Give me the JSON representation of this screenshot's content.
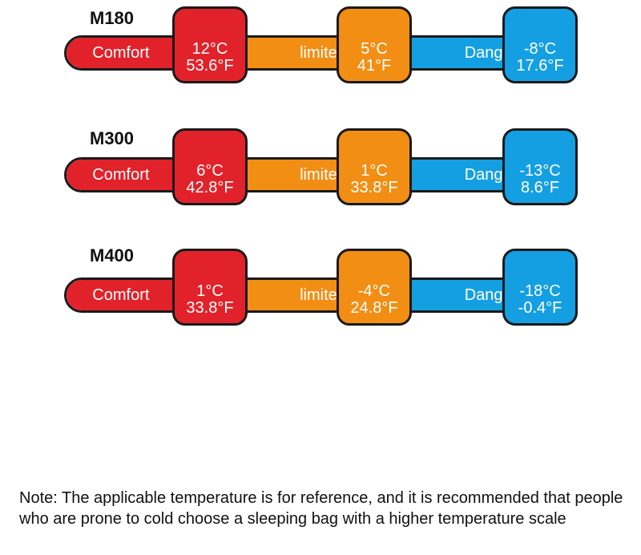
{
  "rows": [
    {
      "model": "M180",
      "comfort_label": "Comfort",
      "limited_label": "limited",
      "danger_label": "Danger",
      "comfort_c": "12°C",
      "comfort_f": "53.6°F",
      "limited_c": "5°C",
      "limited_f": "41°F",
      "danger_c": "-8°C",
      "danger_f": "17.6°F"
    },
    {
      "model": "M300",
      "comfort_label": "Comfort",
      "limited_label": "limited",
      "danger_label": "Danger",
      "comfort_c": "6°C",
      "comfort_f": "42.8°F",
      "limited_c": "1°C",
      "limited_f": "33.8°F",
      "danger_c": "-13°C",
      "danger_f": "8.6°F"
    },
    {
      "model": "M400",
      "comfort_label": "Comfort",
      "limited_label": "limited",
      "danger_label": "Danger",
      "comfort_c": "1°C",
      "comfort_f": "33.8°F",
      "limited_c": "-4°C",
      "limited_f": "24.8°F",
      "danger_c": "-18°C",
      "danger_f": "-0.4°F"
    }
  ],
  "colors": {
    "comfort": "#e2222a",
    "limited": "#f28e13",
    "danger": "#159fe3",
    "outline": "#1a1a1a"
  },
  "note": "Note: The applicable temperature is for reference, and it is recommended that people who are prone to cold choose a sleeping bag with a higher temperature scale"
}
